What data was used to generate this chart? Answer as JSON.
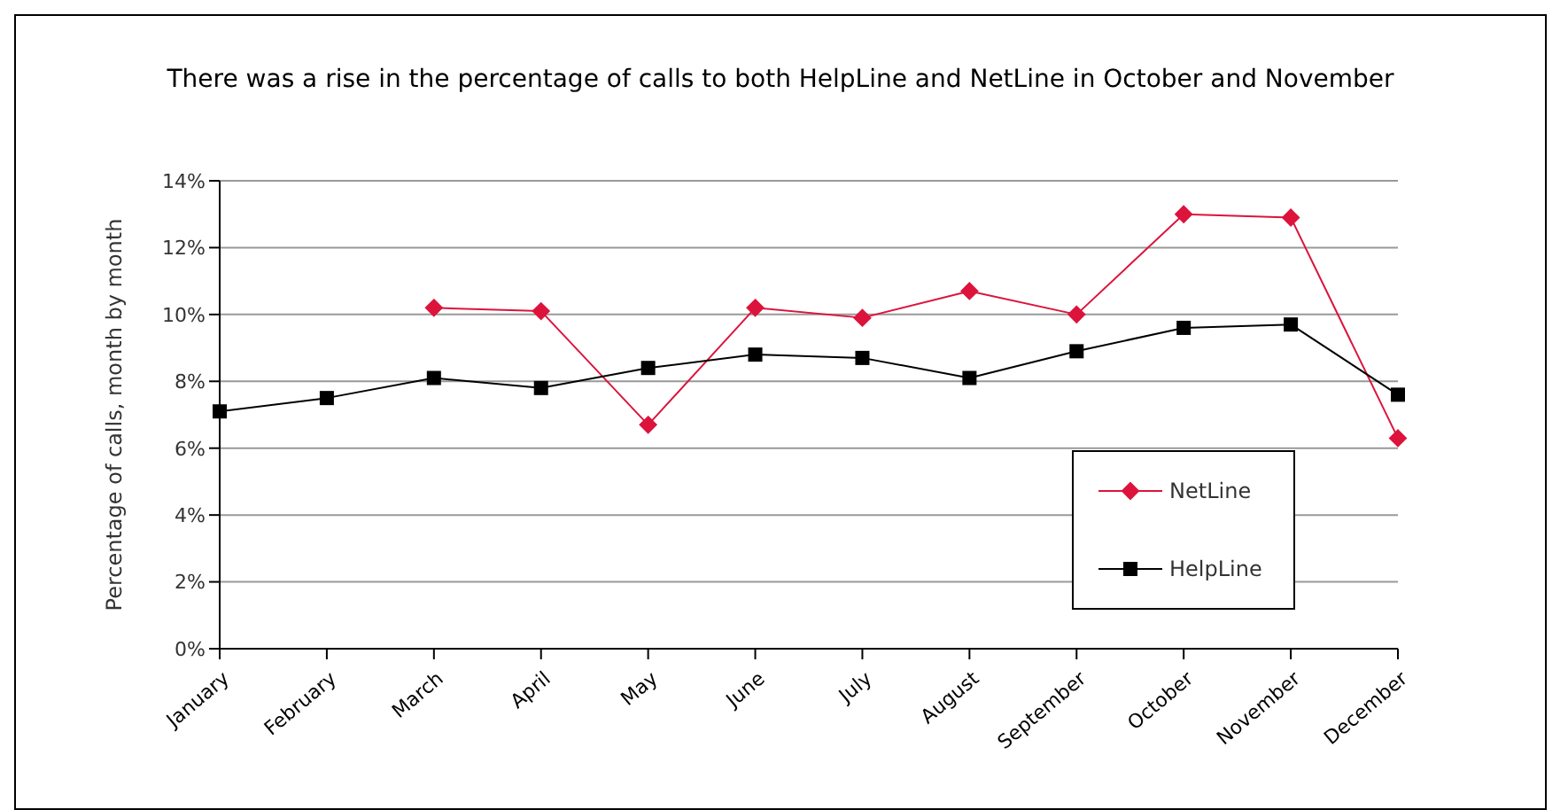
{
  "chart_data": {
    "type": "line",
    "title": "There was a rise in the percentage of calls to both HelpLine and NetLine in October and November",
    "ylabel": "Percentage of calls, month by month",
    "categories": [
      "January",
      "February",
      "March",
      "April",
      "May",
      "June",
      "July",
      "August",
      "September",
      "October",
      "November",
      "December"
    ],
    "series": [
      {
        "name": "NetLine",
        "color": "#dc143c",
        "marker": "diamond",
        "values": [
          null,
          null,
          10.2,
          10.1,
          6.7,
          10.2,
          9.9,
          10.7,
          10.0,
          13.0,
          12.9,
          6.3
        ]
      },
      {
        "name": "HelpLine",
        "color": "#000000",
        "marker": "square",
        "values": [
          7.1,
          7.5,
          8.1,
          7.8,
          8.4,
          8.8,
          8.7,
          8.1,
          8.9,
          9.6,
          9.7,
          7.6
        ]
      }
    ],
    "ylim": [
      0,
      14
    ],
    "yticks": [
      {
        "value": 0,
        "label": "0%"
      },
      {
        "value": 2,
        "label": "2%"
      },
      {
        "value": 4,
        "label": "4%"
      },
      {
        "value": 6,
        "label": "6%"
      },
      {
        "value": 8,
        "label": "8%"
      },
      {
        "value": 10,
        "label": "10%"
      },
      {
        "value": 12,
        "label": "12%"
      },
      {
        "value": 14,
        "label": "14%"
      }
    ],
    "grid": "y",
    "legend": "right"
  }
}
